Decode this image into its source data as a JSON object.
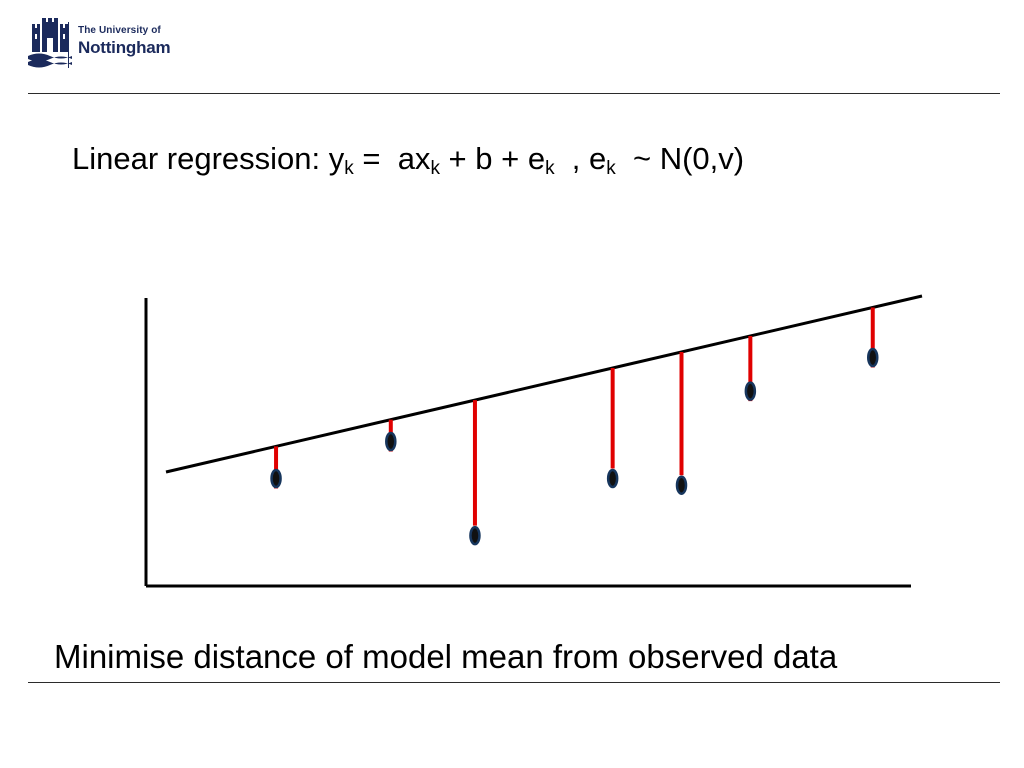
{
  "header": {
    "logo_line1": "The University of",
    "logo_line2": "Nottingham",
    "brand_color": "#1b2a5c"
  },
  "title": {
    "prefix": "Linear regression: y",
    "sub1": "k",
    "eq": " =  ax",
    "sub2": "k",
    "plus": " + b + e",
    "sub3": "k",
    "comma": "  , e",
    "sub4": "k",
    "dist": "  ~ N(0,v)"
  },
  "diagram": {
    "point_color": "#17365d",
    "residual_color": "#e00000",
    "line_color": "#000000",
    "points": [
      {
        "x": 0.17,
        "y": 0.32,
        "side": "above"
      },
      {
        "x": 0.32,
        "y": 0.43,
        "side": "above"
      },
      {
        "x": 0.43,
        "y": 0.15,
        "side": "below"
      },
      {
        "x": 0.61,
        "y": 0.32,
        "side": "below"
      },
      {
        "x": 0.7,
        "y": 0.3,
        "side": "below"
      },
      {
        "x": 0.79,
        "y": 0.58,
        "side": "above"
      },
      {
        "x": 0.95,
        "y": 0.68,
        "side": "above"
      }
    ]
  },
  "caption": "Minimise distance of model mean from observed data"
}
